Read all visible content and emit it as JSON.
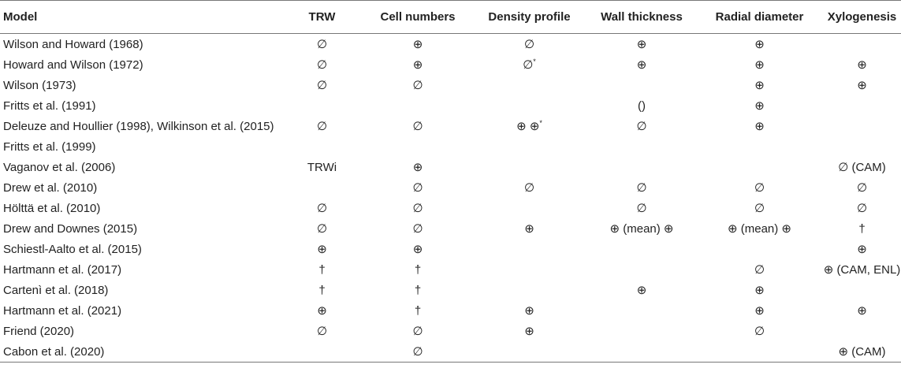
{
  "headers": [
    "Model",
    "TRW",
    "Cell numbers",
    "Density profile",
    "Wall thickness",
    "Radial diameter",
    "Xylogenesis"
  ],
  "rows": [
    [
      "Wilson and Howard (1968)",
      "∅",
      "⊕",
      "∅",
      "⊕",
      "⊕",
      ""
    ],
    [
      "Howard and Wilson (1972)",
      "∅",
      "⊕",
      "∅*",
      "⊕",
      "⊕",
      "⊕"
    ],
    [
      "Wilson (1973)",
      "∅",
      "∅",
      "",
      "",
      "⊕",
      "⊕"
    ],
    [
      "Fritts et al. (1991)",
      "",
      "",
      "",
      "()",
      "⊕",
      ""
    ],
    [
      "Deleuze and Houllier (1998), Wilkinson et al. (2015)",
      "∅",
      "∅",
      "⊕ ⊕*",
      "∅",
      "⊕",
      ""
    ],
    [
      "Fritts et al. (1999)",
      "",
      "",
      "",
      "",
      "",
      ""
    ],
    [
      "Vaganov et al. (2006)",
      "TRWi",
      "⊕",
      "",
      "",
      "",
      "∅ (CAM)"
    ],
    [
      "Drew et al. (2010)",
      "",
      "∅",
      "∅",
      "∅",
      "∅",
      "∅"
    ],
    [
      "Hölttä et al. (2010)",
      "∅",
      "∅",
      "",
      "∅",
      "∅",
      "∅"
    ],
    [
      "Drew and Downes (2015)",
      "∅",
      "∅",
      "⊕",
      "⊕ (mean) ⊕",
      "⊕ (mean) ⊕",
      "†"
    ],
    [
      "Schiestl-Aalto et al. (2015)",
      "⊕",
      "⊕",
      "",
      "",
      "",
      "⊕"
    ],
    [
      "Hartmann et al. (2017)",
      "†",
      "†",
      "",
      "",
      "∅",
      "⊕ (CAM, ENL)"
    ],
    [
      "Cartenì et al. (2018)",
      "†",
      "†",
      "",
      "⊕",
      "⊕",
      ""
    ],
    [
      "Hartmann et al. (2021)",
      "⊕",
      "†",
      "⊕",
      "",
      "⊕",
      "⊕"
    ],
    [
      "Friend (2020)",
      "∅",
      "∅",
      "⊕",
      "",
      "∅",
      ""
    ],
    [
      "Cabon et al. (2020)",
      "",
      "∅",
      "",
      "",
      "",
      "⊕ (CAM)"
    ]
  ]
}
